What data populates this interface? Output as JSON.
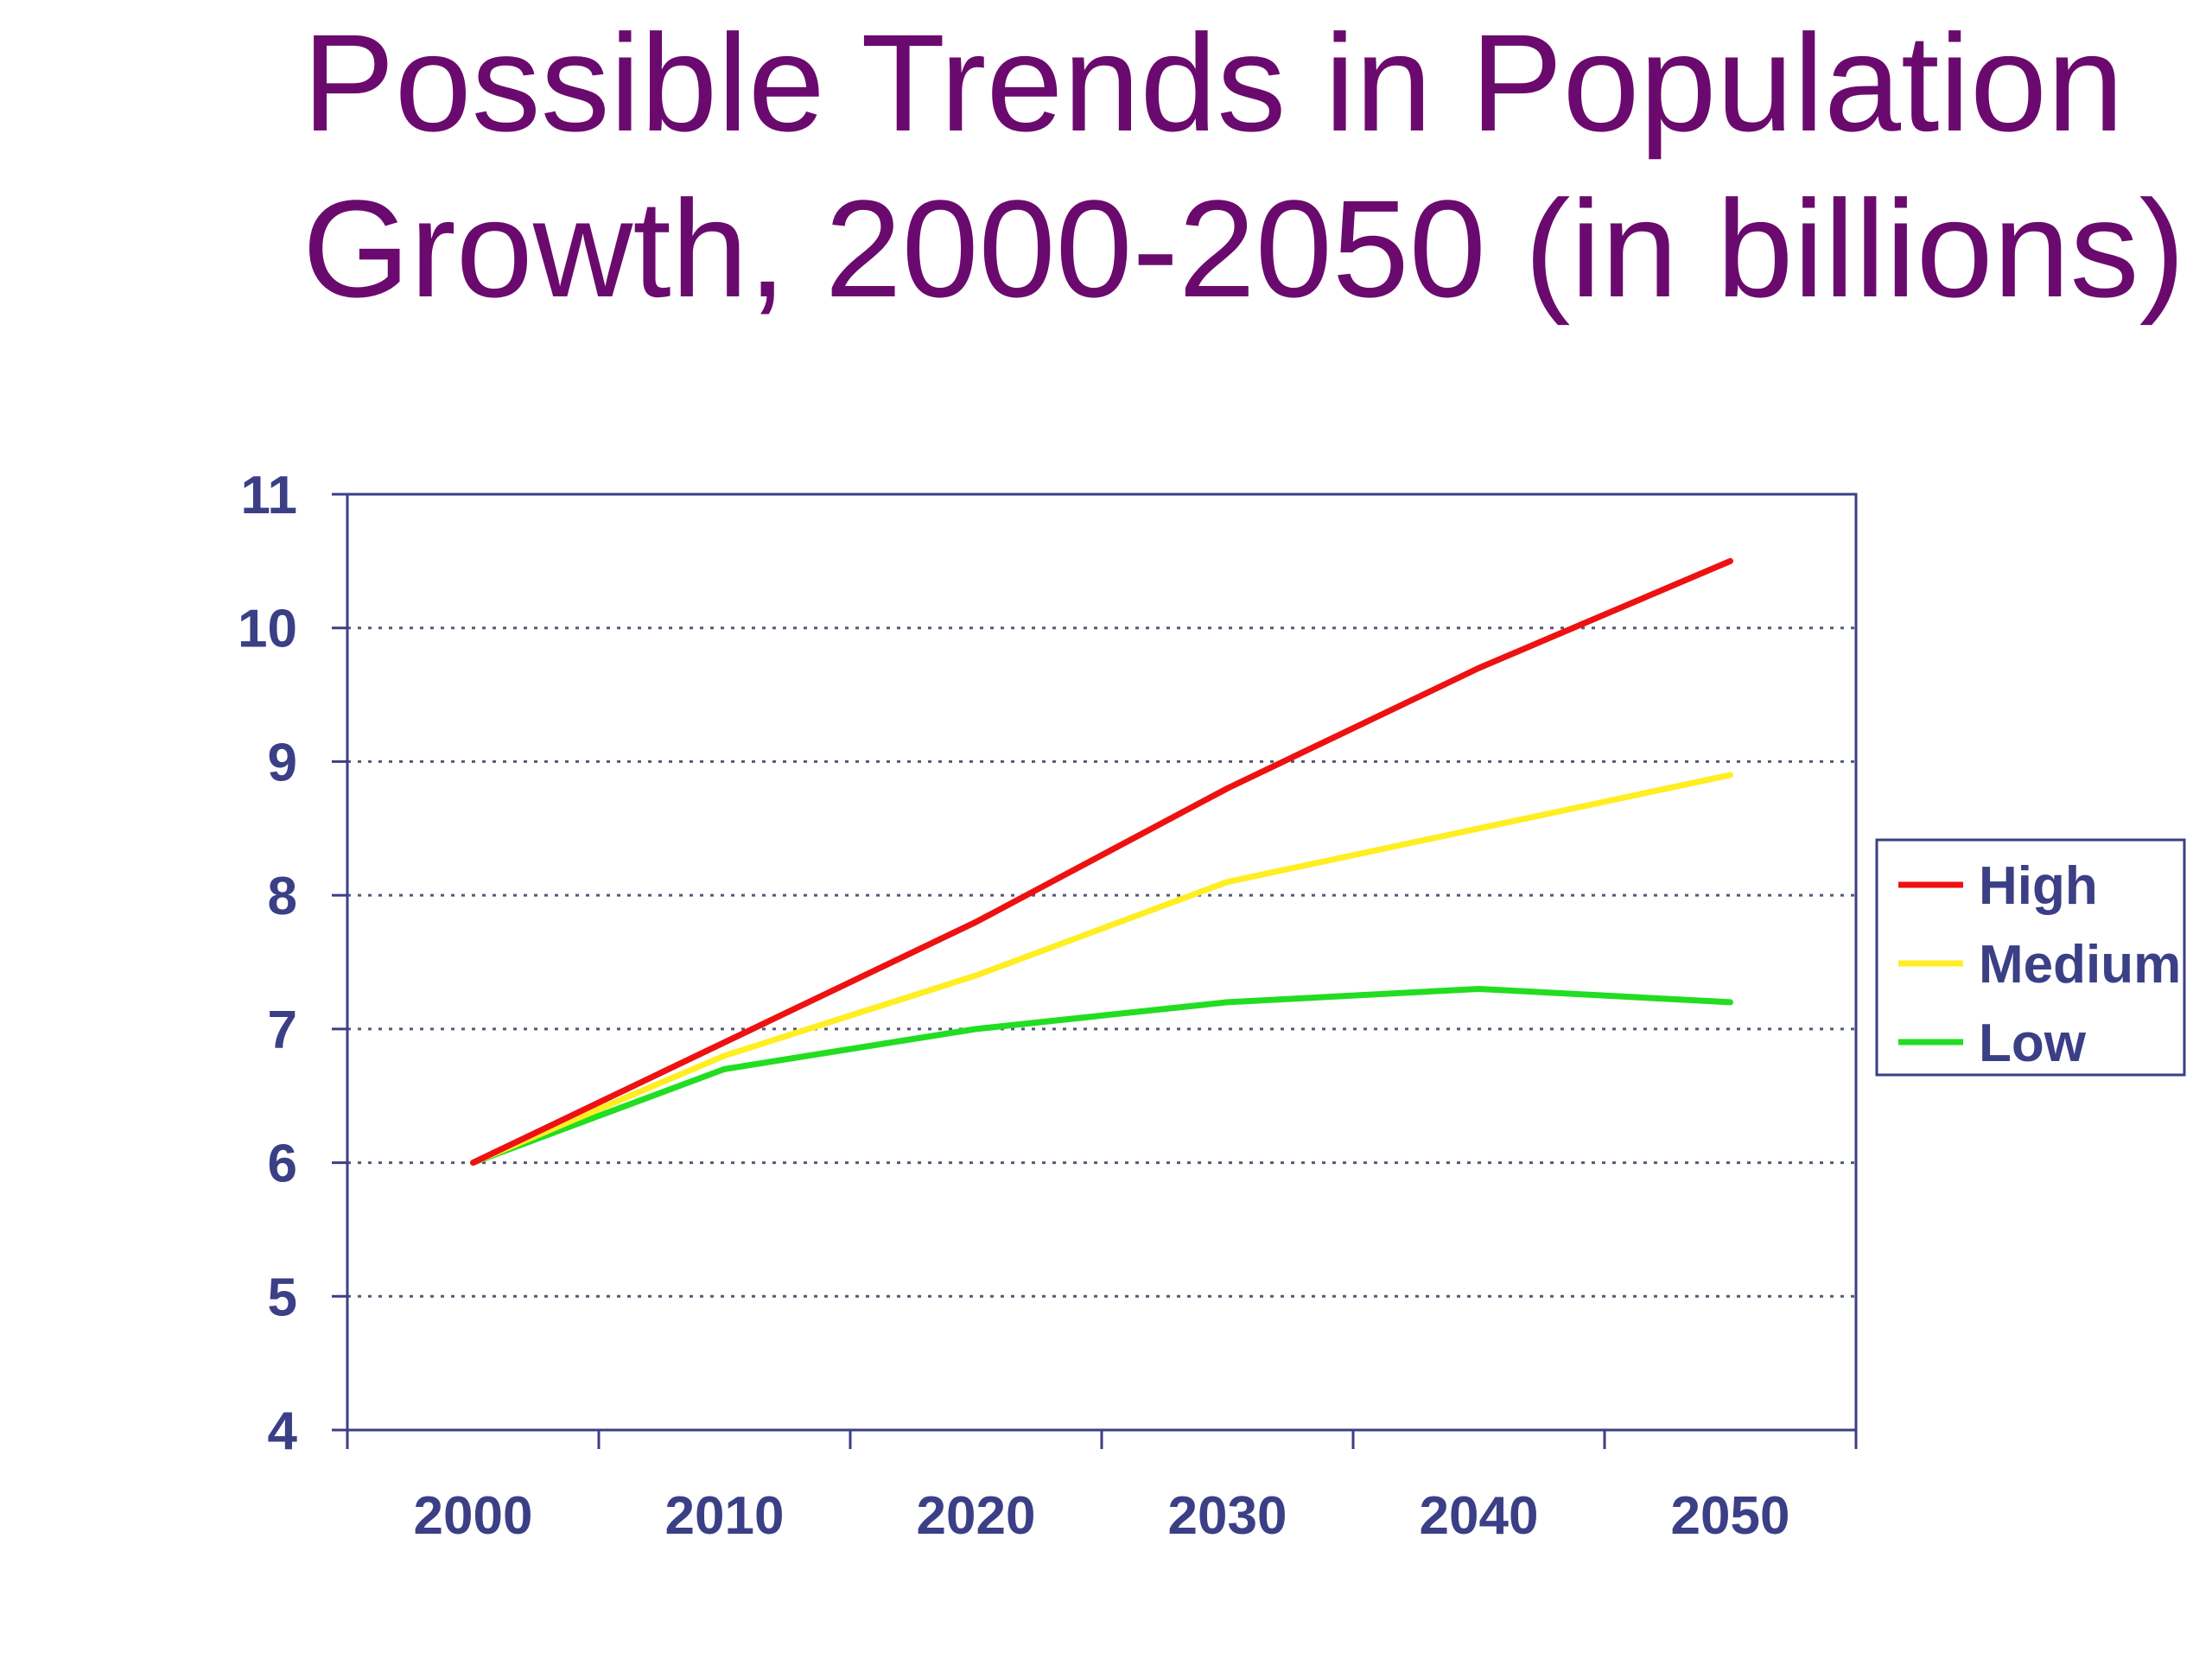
{
  "title_lines": [
    "Possible Trends in Population",
    "Growth, 2000-2050 (in billions)"
  ],
  "colors": {
    "title": "#6b0a6e",
    "axis": "#3b3f86",
    "grid": "#55597a",
    "legend_border": "#3b3f86"
  },
  "chart_data": {
    "type": "line",
    "title": "Possible Trends in Population Growth, 2000-2050 (in billions)",
    "xlabel": "",
    "ylabel": "",
    "x": [
      2000,
      2010,
      2020,
      2030,
      2040,
      2050
    ],
    "xticklabels": [
      "2000",
      "2010",
      "2020",
      "2030",
      "2040",
      "2050"
    ],
    "yticks": [
      4,
      5,
      6,
      7,
      8,
      9,
      10,
      11
    ],
    "ylim": [
      4,
      11
    ],
    "grid": true,
    "legend_position": "right",
    "series": [
      {
        "name": "High",
        "color": "#ee1111",
        "values": [
          6.0,
          6.9,
          7.8,
          8.8,
          9.7,
          10.5
        ]
      },
      {
        "name": "Medium",
        "color": "#ffee22",
        "values": [
          6.0,
          6.8,
          7.4,
          8.1,
          8.5,
          8.9
        ]
      },
      {
        "name": "Low",
        "color": "#22dd22",
        "values": [
          6.0,
          6.7,
          7.0,
          7.2,
          7.3,
          7.2
        ]
      }
    ]
  }
}
